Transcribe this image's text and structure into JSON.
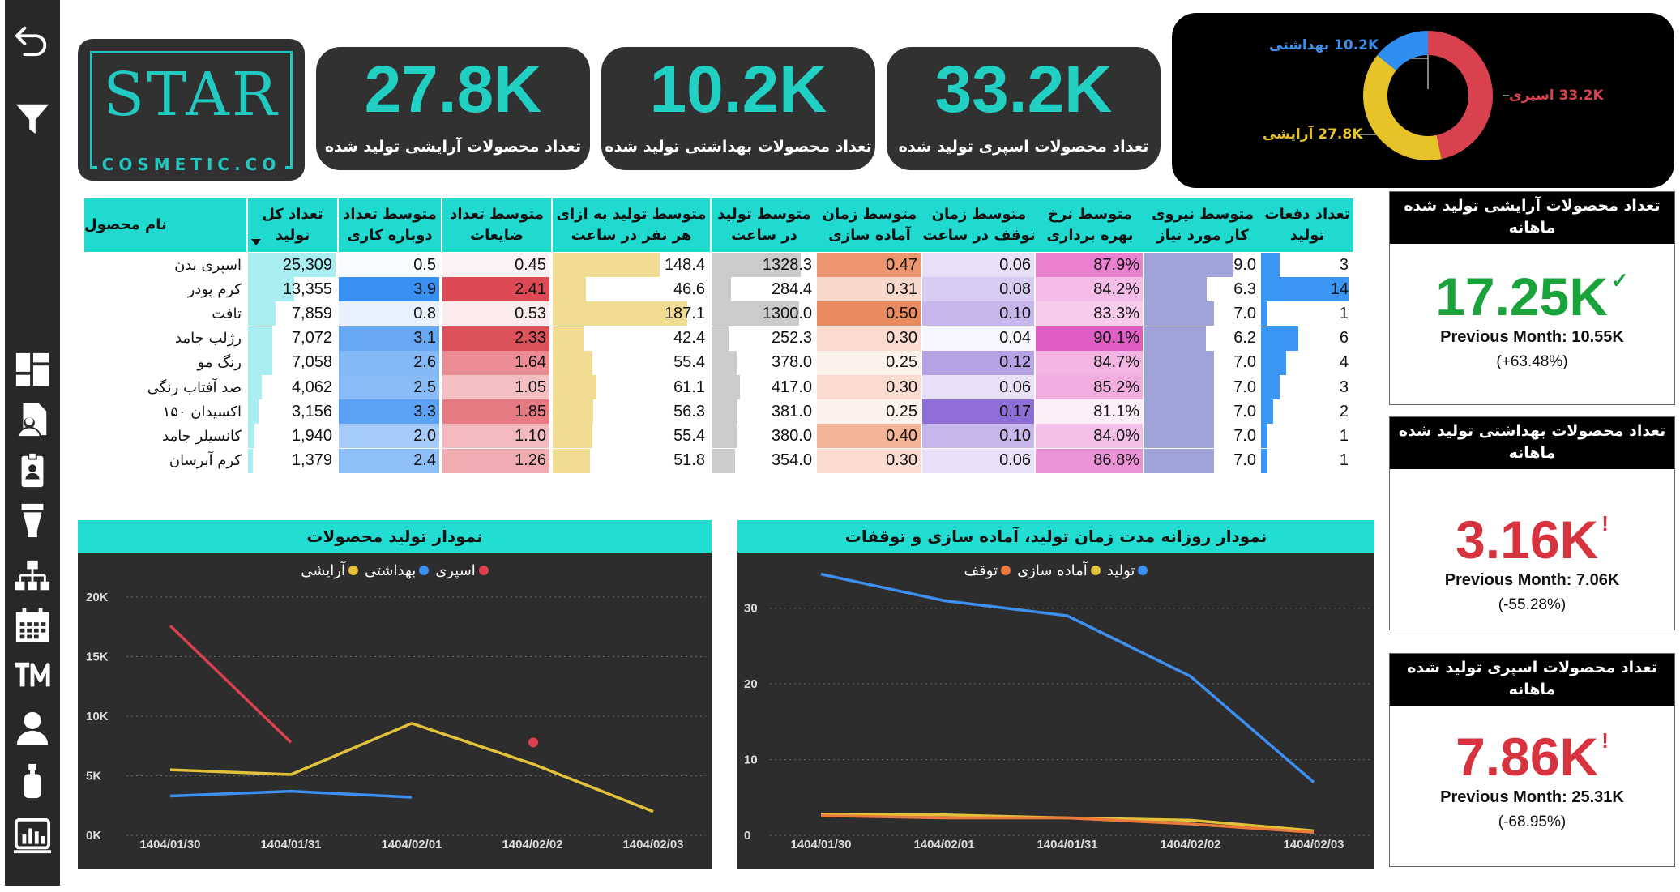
{
  "sidebar": {
    "icons": [
      "back-arrow-icon",
      "filter-icon",
      "dashboard-icon",
      "document-user-icon",
      "id-badge-icon",
      "cream-tube-icon",
      "org-chart-icon",
      "calendar-icon",
      "trademark-icon",
      "user-icon",
      "spray-bottle-icon",
      "bar-chart-report-icon"
    ]
  },
  "logo": {
    "main": "STAR",
    "sub": "COSMETIC.CO"
  },
  "kpis": [
    {
      "value": "27.8K",
      "label": "تعداد محصولات آرایشی تولید شده"
    },
    {
      "value": "10.2K",
      "label": "تعداد محصولات بهداشتی تولید شده"
    },
    {
      "value": "33.2K",
      "label": "تعداد محصولات اسپری تولید شده"
    }
  ],
  "donut": {
    "hygiene_label": "10.2K بهداشتی",
    "spray_label": "33.2K اسپری",
    "cosmetic_label": "27.8K آرایشی",
    "colors": {
      "spray": "#d9414e",
      "cosmetic": "#e7c32a",
      "hygiene": "#2f8ff0"
    },
    "values": {
      "spray": 33.2,
      "cosmetic": 27.8,
      "hygiene": 10.2
    }
  },
  "table": {
    "headers": {
      "name": "نام محصول",
      "total": "تعداد کل تولید",
      "rework": "متوسط تعداد دوباره کاری",
      "waste": "متوسط تعداد ضایعات",
      "per_person": "متوسط تولید به ازای هر نفر در ساعت",
      "per_hour": "متوسط تولید در ساعت",
      "setup": "متوسط زمان آماده سازی",
      "stop": "متوسط زمان توقف در ساعت",
      "efficiency": "متوسط نرخ بهره برداری",
      "workforce": "متوسط نیروی کار مورد نیاز",
      "runs": "تعداد دفعات تولید"
    },
    "rows": [
      {
        "name": "اسپری بدن",
        "total": "25,309",
        "rework": "0.5",
        "waste": "0.45",
        "per_person": "148.4",
        "per_hour": "1328.3",
        "setup": "0.47",
        "stop": "0.06",
        "efficiency": "87.9%",
        "workforce": "9.0",
        "runs": "3"
      },
      {
        "name": "کرم پودر",
        "total": "13,355",
        "rework": "3.9",
        "waste": "2.41",
        "per_person": "46.6",
        "per_hour": "284.4",
        "setup": "0.31",
        "stop": "0.08",
        "efficiency": "84.2%",
        "workforce": "6.3",
        "runs": "14"
      },
      {
        "name": "تافت",
        "total": "7,859",
        "rework": "0.8",
        "waste": "0.53",
        "per_person": "187.1",
        "per_hour": "1300.0",
        "setup": "0.50",
        "stop": "0.10",
        "efficiency": "83.3%",
        "workforce": "7.0",
        "runs": "1"
      },
      {
        "name": "رژلب جامد",
        "total": "7,072",
        "rework": "3.1",
        "waste": "2.33",
        "per_person": "42.4",
        "per_hour": "252.3",
        "setup": "0.30",
        "stop": "0.04",
        "efficiency": "90.1%",
        "workforce": "6.2",
        "runs": "6"
      },
      {
        "name": "رنگ مو",
        "total": "7,058",
        "rework": "2.6",
        "waste": "1.64",
        "per_person": "55.4",
        "per_hour": "378.0",
        "setup": "0.25",
        "stop": "0.12",
        "efficiency": "84.7%",
        "workforce": "7.0",
        "runs": "4"
      },
      {
        "name": "ضد آفتاب رنگی",
        "total": "4,062",
        "rework": "2.5",
        "waste": "1.05",
        "per_person": "61.1",
        "per_hour": "417.0",
        "setup": "0.30",
        "stop": "0.06",
        "efficiency": "85.2%",
        "workforce": "7.0",
        "runs": "3"
      },
      {
        "name": "اکسیدان ۱۵۰",
        "total": "3,156",
        "rework": "3.3",
        "waste": "1.85",
        "per_person": "56.3",
        "per_hour": "381.0",
        "setup": "0.25",
        "stop": "0.17",
        "efficiency": "81.1%",
        "workforce": "7.0",
        "runs": "2"
      },
      {
        "name": "کانسیلر جامد",
        "total": "1,940",
        "rework": "2.0",
        "waste": "1.10",
        "per_person": "55.4",
        "per_hour": "380.0",
        "setup": "0.40",
        "stop": "0.10",
        "efficiency": "84.0%",
        "workforce": "7.0",
        "runs": "1"
      },
      {
        "name": "کرم آبرسان",
        "total": "1,379",
        "rework": "2.4",
        "waste": "1.26",
        "per_person": "51.8",
        "per_hour": "354.0",
        "setup": "0.30",
        "stop": "0.06",
        "efficiency": "86.8%",
        "workforce": "7.0",
        "runs": "1"
      }
    ]
  },
  "monthly": [
    {
      "title": "تعداد محصولات آرایشی تولید شده ماهانه",
      "value": "17.25K",
      "mark": "✓",
      "color": "#1aa33a",
      "previous": "Previous Month: 10.55K",
      "change": "(+63.48%)"
    },
    {
      "title": "تعداد محصولات بهداشتی تولید شده ماهانه",
      "value": "3.16K",
      "mark": "!",
      "color": "#d6333e",
      "previous": "Previous Month: 7.06K",
      "change": "(-55.28%)"
    },
    {
      "title": "تعداد محصولات اسپری تولید شده ماهانه",
      "value": "7.86K",
      "mark": "!",
      "color": "#d6333e",
      "previous": "Previous Month: 25.31K",
      "change": "(-68.95%)"
    }
  ],
  "chart_data": [
    {
      "type": "line",
      "title": "نمودار تولید محصولات",
      "categories": [
        "1404/01/30",
        "1404/01/31",
        "1404/02/01",
        "1404/02/02",
        "1404/02/03"
      ],
      "ylim": [
        0,
        20000
      ],
      "yticks": [
        "0K",
        "5K",
        "10K",
        "15K",
        "20K"
      ],
      "grid": true,
      "legend": "top-center",
      "series": [
        {
          "name": "اسپری",
          "color": "#d9414e",
          "values": [
            17600,
            7800,
            null,
            7800,
            null
          ]
        },
        {
          "name": "بهداشتی",
          "color": "#3d8ff0",
          "values": [
            3300,
            3700,
            3200,
            null,
            null
          ]
        },
        {
          "name": "آرایشی",
          "color": "#e2c23a",
          "values": [
            5500,
            5100,
            9400,
            6000,
            2000
          ]
        }
      ]
    },
    {
      "type": "line",
      "title": "نمودار روزانه مدت زمان تولید، آماده سازی و توقفات",
      "categories": [
        "1404/01/30",
        "1404/02/01",
        "1404/01/31",
        "1404/02/02",
        "1404/02/03"
      ],
      "ylim": [
        0,
        35
      ],
      "yticks": [
        "0",
        "10",
        "20",
        "30"
      ],
      "grid": true,
      "legend": "top-center",
      "series": [
        {
          "name": "تولید",
          "color": "#3d8ff0",
          "values": [
            34.5,
            31,
            29,
            21,
            7
          ]
        },
        {
          "name": "آماده سازی",
          "color": "#e2c23a",
          "values": [
            2.8,
            2.7,
            2.3,
            2.0,
            0.6
          ]
        },
        {
          "name": "توقف",
          "color": "#ec7a3d",
          "values": [
            2.6,
            2.3,
            2.3,
            1.5,
            0.4
          ]
        }
      ]
    }
  ]
}
